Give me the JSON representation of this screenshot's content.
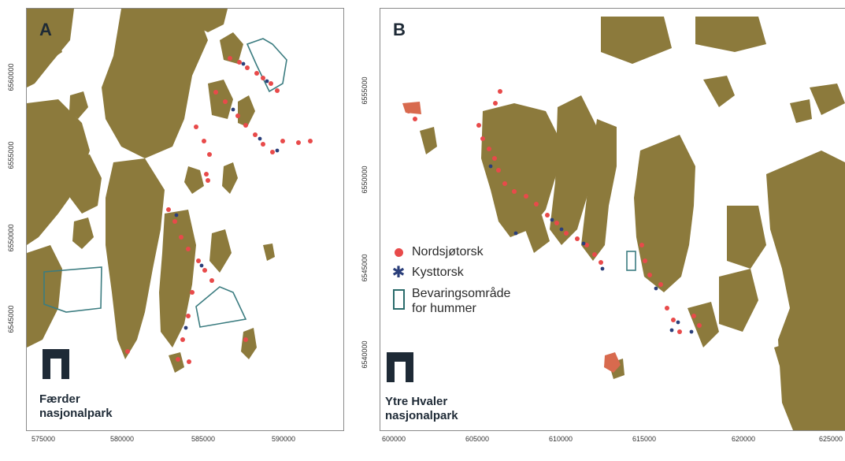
{
  "panels": {
    "a": {
      "letter": "A",
      "park_name_line1": "Færder",
      "park_name_line2": "nasjonalpark",
      "x_ticks": [
        "575000",
        "580000",
        "585000",
        "590000"
      ],
      "y_ticks": [
        "6560000",
        "6555000",
        "6550000",
        "6545000"
      ]
    },
    "b": {
      "letter": "B",
      "park_name_line1": "Ytre Hvaler",
      "park_name_line2": "nasjonalpark",
      "x_ticks": [
        "600000",
        "605000",
        "610000",
        "615000",
        "620000",
        "625000"
      ],
      "y_ticks": [
        "6555000",
        "6550000",
        "6545000",
        "6540000"
      ]
    }
  },
  "legend": {
    "north_sea_cod": "Nordsjøtorsk",
    "coastal_cod": "Kysttorsk",
    "lobster_area_line1": "Bevaringsområde",
    "lobster_area_line2": "for hummer"
  },
  "colors": {
    "land": "#8c7a3c",
    "water": "#ffffff",
    "north_sea_cod": "#e84a4a",
    "coastal_cod": "#2b3f7a",
    "protected_area_outline": "#3b7c80"
  }
}
